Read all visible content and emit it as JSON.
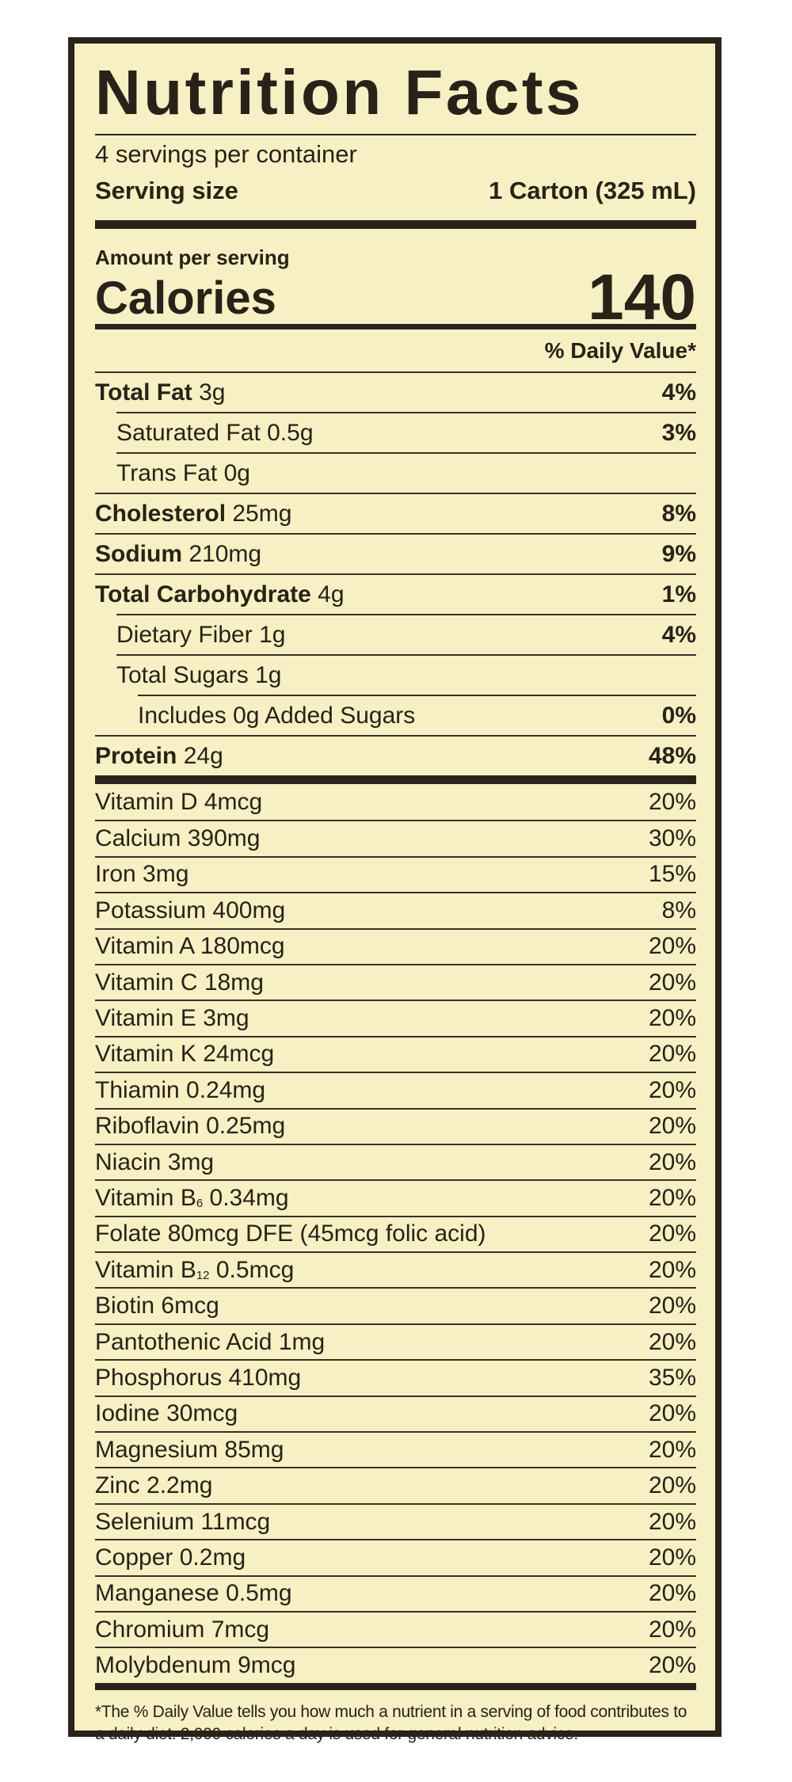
{
  "title": "Nutrition Facts",
  "servings_per_container": "4 servings per container",
  "serving_size_label": "Serving size",
  "serving_size_value": "1 Carton (325 mL)",
  "amount_per_serving": "Amount per serving",
  "calories_label": "Calories",
  "calories_value": "140",
  "daily_value_header": "% Daily Value*",
  "nutrients": [
    {
      "name": "Total Fat",
      "amount": "3g",
      "dv": "4%",
      "bold": true,
      "indent": 0
    },
    {
      "name": "Saturated Fat",
      "amount": "0.5g",
      "dv": "3%",
      "bold": false,
      "indent": 1
    },
    {
      "name": "Trans Fat",
      "amount": "0g",
      "dv": "",
      "bold": false,
      "indent": 1
    },
    {
      "name": "Cholesterol",
      "amount": "25mg",
      "dv": "8%",
      "bold": true,
      "indent": 0
    },
    {
      "name": "Sodium",
      "amount": "210mg",
      "dv": "9%",
      "bold": true,
      "indent": 0
    },
    {
      "name": "Total Carbohydrate",
      "amount": "4g",
      "dv": "1%",
      "bold": true,
      "indent": 0
    },
    {
      "name": "Dietary Fiber",
      "amount": "1g",
      "dv": "4%",
      "bold": false,
      "indent": 1
    },
    {
      "name": "Total Sugars",
      "amount": "1g",
      "dv": "",
      "bold": false,
      "indent": 1
    },
    {
      "name": "Includes 0g Added Sugars",
      "amount": "",
      "dv": "0%",
      "bold": false,
      "indent": 2
    },
    {
      "name": "Protein",
      "amount": "24g",
      "dv": "48%",
      "bold": true,
      "indent": 0
    }
  ],
  "vitamins": [
    {
      "name": "Vitamin D",
      "sub": "",
      "amount": "4mcg",
      "dv": "20%"
    },
    {
      "name": "Calcium",
      "sub": "",
      "amount": "390mg",
      "dv": "30%"
    },
    {
      "name": "Iron",
      "sub": "",
      "amount": "3mg",
      "dv": "15%"
    },
    {
      "name": "Potassium",
      "sub": "",
      "amount": "400mg",
      "dv": "8%"
    },
    {
      "name": "Vitamin A",
      "sub": "",
      "amount": "180mcg",
      "dv": "20%"
    },
    {
      "name": "Vitamin C",
      "sub": "",
      "amount": "18mg",
      "dv": "20%"
    },
    {
      "name": "Vitamin E",
      "sub": "",
      "amount": "3mg",
      "dv": "20%"
    },
    {
      "name": "Vitamin K",
      "sub": "",
      "amount": "24mcg",
      "dv": "20%"
    },
    {
      "name": "Thiamin",
      "sub": "",
      "amount": "0.24mg",
      "dv": "20%"
    },
    {
      "name": "Riboflavin",
      "sub": "",
      "amount": "0.25mg",
      "dv": "20%"
    },
    {
      "name": "Niacin",
      "sub": "",
      "amount": "3mg",
      "dv": "20%"
    },
    {
      "name": "Vitamin B",
      "sub": "6",
      "amount": "0.34mg",
      "dv": "20%"
    },
    {
      "name": "Folate",
      "sub": "",
      "amount": "80mcg DFE (45mcg folic acid)",
      "dv": "20%"
    },
    {
      "name": "Vitamin B",
      "sub": "12",
      "amount": "0.5mcg",
      "dv": "20%"
    },
    {
      "name": "Biotin",
      "sub": "",
      "amount": "6mcg",
      "dv": "20%"
    },
    {
      "name": "Pantothenic Acid",
      "sub": "",
      "amount": "1mg",
      "dv": "20%"
    },
    {
      "name": "Phosphorus",
      "sub": "",
      "amount": "410mg",
      "dv": "35%"
    },
    {
      "name": "Iodine",
      "sub": "",
      "amount": "30mcg",
      "dv": "20%"
    },
    {
      "name": "Magnesium",
      "sub": "",
      "amount": "85mg",
      "dv": "20%"
    },
    {
      "name": "Zinc",
      "sub": "",
      "amount": "2.2mg",
      "dv": "20%"
    },
    {
      "name": "Selenium",
      "sub": "",
      "amount": "11mcg",
      "dv": "20%"
    },
    {
      "name": "Copper",
      "sub": "",
      "amount": "0.2mg",
      "dv": "20%"
    },
    {
      "name": "Manganese",
      "sub": "",
      "amount": "0.5mg",
      "dv": "20%"
    },
    {
      "name": "Chromium",
      "sub": "",
      "amount": "7mcg",
      "dv": "20%"
    },
    {
      "name": "Molybdenum",
      "sub": "",
      "amount": "9mcg",
      "dv": "20%"
    }
  ],
  "footnote": "*The % Daily Value tells you how much a nutrient in a serving of food contributes to a daily diet. 2,000 calories a day is used for general nutrition advice.",
  "colors": {
    "background": "#f6f0c4",
    "ink": "#2a2118"
  }
}
